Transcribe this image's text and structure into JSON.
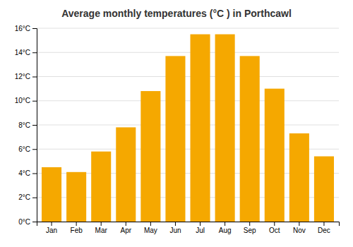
{
  "chart_data": {
    "type": "bar",
    "title": "Average monthly temperatures (°C ) in Porthcawl",
    "categories": [
      "Jan",
      "Feb",
      "Mar",
      "Apr",
      "May",
      "Jun",
      "Jul",
      "Aug",
      "Sep",
      "Oct",
      "Nov",
      "Dec"
    ],
    "values": [
      4.5,
      4.1,
      5.8,
      7.8,
      10.8,
      13.7,
      15.5,
      15.5,
      13.7,
      11.0,
      7.3,
      5.4
    ],
    "color": "#F5A800",
    "ylim": [
      0,
      16
    ],
    "yticks": [
      {
        "value": 0,
        "label": "0°C"
      },
      {
        "value": 2,
        "label": "2°C"
      },
      {
        "value": 4,
        "label": "4°C"
      },
      {
        "value": 6,
        "label": "6°C"
      },
      {
        "value": 8,
        "label": "8°C"
      },
      {
        "value": 10,
        "label": "10°C"
      },
      {
        "value": 12,
        "label": "12°C"
      },
      {
        "value": 14,
        "label": "14°C"
      },
      {
        "value": 16,
        "label": "16°C"
      }
    ],
    "grid": true
  }
}
